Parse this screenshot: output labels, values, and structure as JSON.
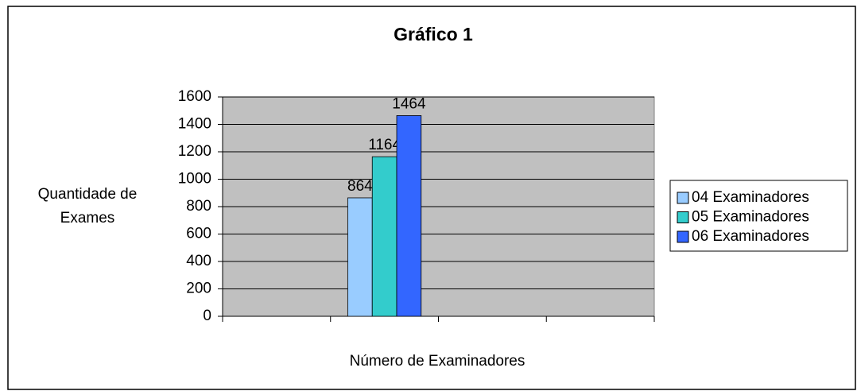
{
  "chart_data": {
    "type": "bar",
    "title": "Gráfico 1",
    "x_label": "Número de Examinadores",
    "y_label": "Quantidade de Exames",
    "categories": [
      null,
      null,
      null,
      null
    ],
    "series": [
      {
        "name": "04 Examinadores",
        "color": "#99ccff",
        "values": [
          null,
          864,
          null,
          null
        ]
      },
      {
        "name": "05 Examinadores",
        "color": "#33cccc",
        "values": [
          null,
          1164,
          null,
          null
        ]
      },
      {
        "name": "06 Examinadores",
        "color": "#3366ff",
        "values": [
          null,
          1464,
          null,
          null
        ]
      }
    ],
    "ylim": [
      0,
      1600
    ],
    "yticks": [
      0,
      200,
      400,
      600,
      800,
      1000,
      1200,
      1400,
      1600
    ],
    "grid": true,
    "legend": "right"
  }
}
